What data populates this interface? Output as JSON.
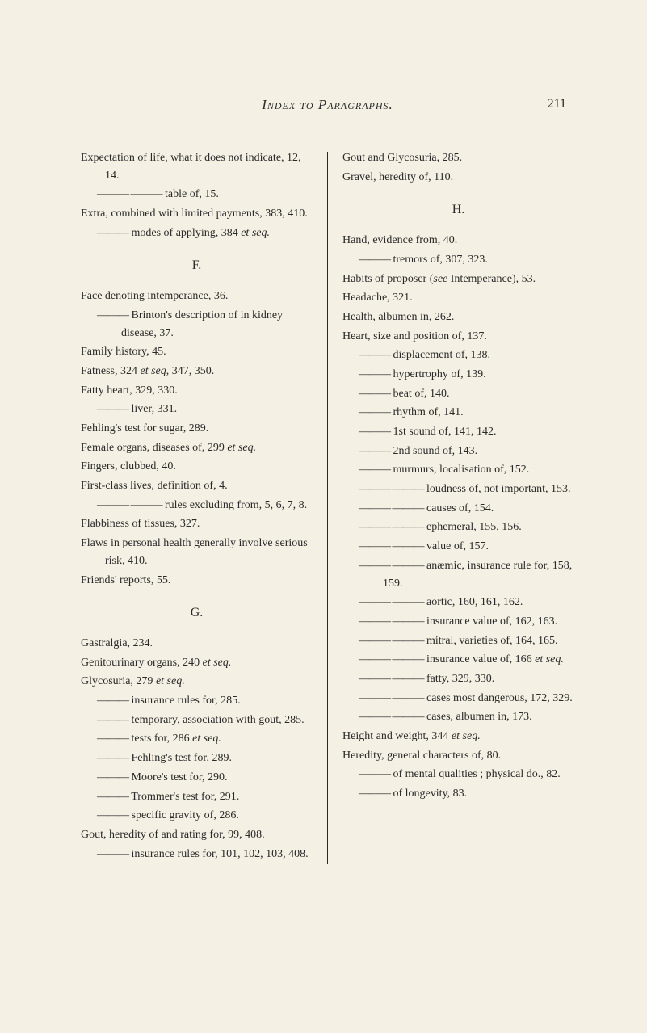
{
  "header": {
    "title": "Index to Paragraphs.",
    "page_number": "211"
  },
  "left_column": [
    {
      "type": "entry",
      "text": "Expectation of life, what it does not indicate, 12, 14."
    },
    {
      "type": "sub",
      "prefix": "——— ———",
      "text": " table of, 15."
    },
    {
      "type": "entry",
      "text": "Extra, combined with limited payments, 383, 410."
    },
    {
      "type": "sub",
      "prefix": "———",
      "text": " modes of applying, 384 <em>et seq.</em>"
    },
    {
      "type": "heading",
      "text": "F."
    },
    {
      "type": "entry",
      "text": "Face denoting intemperance, 36."
    },
    {
      "type": "sub",
      "prefix": "———",
      "text": " Brinton's description of in kidney disease, 37."
    },
    {
      "type": "entry",
      "text": "Family history, 45."
    },
    {
      "type": "entry",
      "text": "Fatness, 324 <em>et seq</em>, 347, 350."
    },
    {
      "type": "entry",
      "text": "Fatty heart, 329, 330."
    },
    {
      "type": "sub",
      "prefix": "———",
      "text": " liver, 331."
    },
    {
      "type": "entry",
      "text": "Fehling's test for sugar, 289."
    },
    {
      "type": "entry",
      "text": "Female organs, diseases of, 299 <em>et seq.</em>"
    },
    {
      "type": "entry",
      "text": "Fingers, clubbed, 40."
    },
    {
      "type": "entry",
      "text": "First-class lives, definition of, 4."
    },
    {
      "type": "sub",
      "prefix": "——— ———",
      "text": " rules excluding from, 5, 6, 7, 8."
    },
    {
      "type": "entry",
      "text": "Flabbiness of tissues, 327."
    },
    {
      "type": "entry",
      "text": "Flaws in personal health generally involve serious risk, 410."
    },
    {
      "type": "entry",
      "text": "Friends' reports, 55."
    },
    {
      "type": "heading",
      "text": "G."
    },
    {
      "type": "entry",
      "text": "Gastralgia, 234."
    },
    {
      "type": "entry",
      "text": "Genitourinary organs, 240 <em>et seq.</em>"
    },
    {
      "type": "entry",
      "text": "Glycosuria, 279 <em>et seq.</em>"
    },
    {
      "type": "sub",
      "prefix": "———",
      "text": " insurance rules for, 285."
    },
    {
      "type": "sub",
      "prefix": "———",
      "text": " temporary, association with gout, 285."
    },
    {
      "type": "sub",
      "prefix": "———",
      "text": " tests for, 286 <em>et seq.</em>"
    },
    {
      "type": "sub",
      "prefix": "———",
      "text": " Fehling's test for, 289."
    },
    {
      "type": "sub",
      "prefix": "———",
      "text": " Moore's test for, 290."
    },
    {
      "type": "sub",
      "prefix": "———",
      "text": " Trommer's test for, 291."
    },
    {
      "type": "sub",
      "prefix": "———",
      "text": " specific gravity of, 286."
    },
    {
      "type": "entry",
      "text": "Gout, heredity of and rating for, 99, 408."
    },
    {
      "type": "sub",
      "prefix": "———",
      "text": " insurance rules for, 101, 102, 103, 408."
    }
  ],
  "right_column": [
    {
      "type": "entry",
      "text": "Gout and Glycosuria, 285."
    },
    {
      "type": "entry",
      "text": "Gravel, heredity of, 110."
    },
    {
      "type": "heading",
      "text": "H."
    },
    {
      "type": "entry",
      "text": "Hand, evidence from, 40."
    },
    {
      "type": "sub",
      "prefix": "———",
      "text": " tremors of, 307, 323."
    },
    {
      "type": "entry",
      "text": "Habits of proposer (<em>see</em> Intemperance), 53."
    },
    {
      "type": "entry",
      "text": "Headache, 321."
    },
    {
      "type": "entry",
      "text": "Health, albumen in, 262."
    },
    {
      "type": "entry",
      "text": "Heart, size and position of, 137."
    },
    {
      "type": "sub",
      "prefix": "———",
      "text": " displacement of, 138."
    },
    {
      "type": "sub",
      "prefix": "———",
      "text": " hypertrophy of, 139."
    },
    {
      "type": "sub",
      "prefix": "———",
      "text": " beat of, 140."
    },
    {
      "type": "sub",
      "prefix": "———",
      "text": " rhythm of, 141."
    },
    {
      "type": "sub",
      "prefix": "———",
      "text": " 1st sound of, 141, 142."
    },
    {
      "type": "sub",
      "prefix": "———",
      "text": " 2nd sound of, 143."
    },
    {
      "type": "sub",
      "prefix": "———",
      "text": " murmurs, localisation of, 152."
    },
    {
      "type": "sub",
      "prefix": "——— ———",
      "text": " loudness of, not important, 153."
    },
    {
      "type": "sub",
      "prefix": "——— ———",
      "text": " causes of, 154."
    },
    {
      "type": "sub",
      "prefix": "——— ———",
      "text": " ephemeral, 155, 156."
    },
    {
      "type": "sub",
      "prefix": "——— ———",
      "text": " value of, 157."
    },
    {
      "type": "sub",
      "prefix": "——— ———",
      "text": " anæmic, insurance rule for, 158, 159."
    },
    {
      "type": "sub",
      "prefix": "——— ———",
      "text": " aortic, 160, 161, 162."
    },
    {
      "type": "sub",
      "prefix": "——— ———",
      "text": " insurance value of, 162, 163."
    },
    {
      "type": "sub",
      "prefix": "——— ———",
      "text": " mitral, varieties of, 164, 165."
    },
    {
      "type": "sub",
      "prefix": "——— ———",
      "text": " insurance value of, 166 <em>et seq.</em>"
    },
    {
      "type": "sub",
      "prefix": "——— ———",
      "text": " fatty, 329, 330."
    },
    {
      "type": "sub",
      "prefix": "——— ———",
      "text": " cases most dangerous, 172, 329."
    },
    {
      "type": "sub",
      "prefix": "——— ———",
      "text": " cases, albumen in, 173."
    },
    {
      "type": "entry",
      "text": "Height and weight, 344 <em>et seq.</em>"
    },
    {
      "type": "entry",
      "text": "Heredity, general characters of, 80."
    },
    {
      "type": "sub",
      "prefix": "———",
      "text": " of mental qualities ; physical do., 82."
    },
    {
      "type": "sub",
      "prefix": "———",
      "text": " of longevity, 83."
    }
  ]
}
